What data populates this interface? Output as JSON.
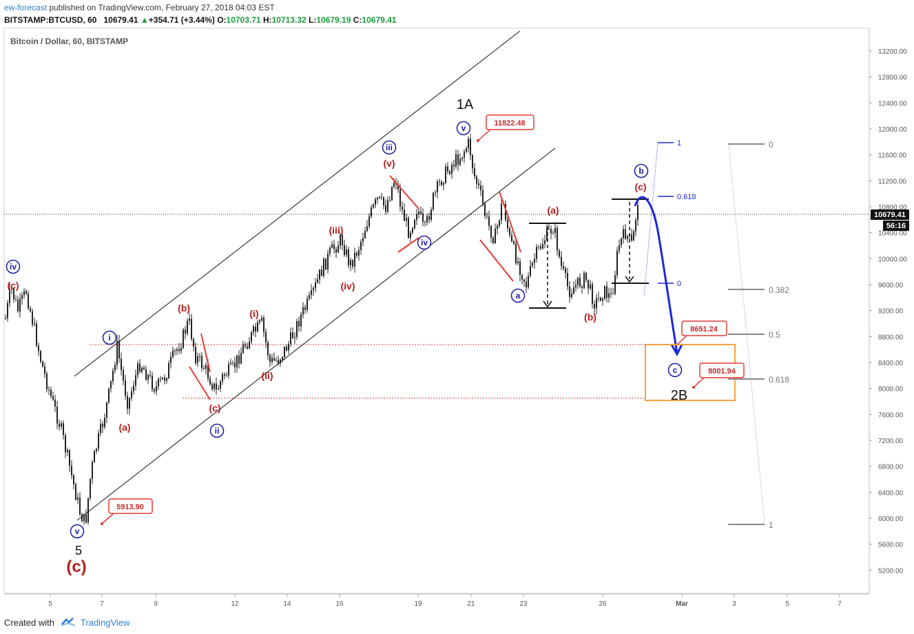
{
  "header": {
    "username": "ew-forecast",
    "published": "published on TradingView.com, February 27, 2018 04:03 EST",
    "symbol": "BITSTAMP:BTCUSD, 60",
    "last": "10679.41",
    "change_arrow": "▲",
    "change": "+354.71 (+3.44%)",
    "o_label": "O:",
    "o_value": "10703.71",
    "h_label": "H:",
    "h_value": "10713.32",
    "l_label": "L:",
    "l_value": "10679.19",
    "c_label": "C:",
    "c_value": "10679.41"
  },
  "footer": {
    "created_with": "Created with",
    "brand": "TradingView"
  },
  "colors": {
    "wave_red": "#b71c1c",
    "wave_blue": "#1a1aa6",
    "projection_blue": "#1b27d8",
    "target_box": "#f7a23a",
    "price_tag_red": "#e53935",
    "fib_gray": "#888888"
  },
  "chart_data": {
    "type": "candlestick",
    "title": "Bitcoin / Dollar, 60, BITSTAMP",
    "ylim": [
      4900,
      13550
    ],
    "x_tick_labels": [
      "5",
      "7",
      "9",
      "12",
      "14",
      "16",
      "19",
      "21",
      "23",
      "26",
      "Mar",
      "3",
      "5",
      "7"
    ],
    "y_tick_labels": [
      "13200.00",
      "12800.00",
      "12400.00",
      "12000.00",
      "11600.00",
      "11200.00",
      "10800.00",
      "10400.00",
      "10000.00",
      "9600.00",
      "9200.00",
      "8800.00",
      "8400.00",
      "8000.00",
      "7600.00",
      "7200.00",
      "6800.00",
      "6400.00",
      "6000.00",
      "5600.00",
      "5200.00"
    ],
    "current_price": {
      "value": 10679.41,
      "label": "10679.41",
      "countdown": "56:16"
    },
    "key_levels": [
      {
        "label": "11822.48",
        "value": 11822.48,
        "role": "1A high"
      },
      {
        "label": "5913.90",
        "value": 5913.9,
        "role": "wave 5 low"
      },
      {
        "label": "8651.24",
        "value": 8651.24,
        "role": "target zone top"
      },
      {
        "label": "8001.94",
        "value": 8001.94,
        "role": "target zone bottom"
      }
    ],
    "wave_labels": [
      {
        "text": "iv",
        "circled": true,
        "color": "blue"
      },
      {
        "text": "(c)",
        "color": "red"
      },
      {
        "text": "(b)",
        "color": "red"
      },
      {
        "text": "i",
        "circled": true,
        "color": "blue"
      },
      {
        "text": "(a)",
        "color": "red"
      },
      {
        "text": "v",
        "circled": true,
        "color": "blue"
      },
      {
        "text": "5",
        "color": "black"
      },
      {
        "text": "(c)",
        "color": "red",
        "emphasis": "large"
      },
      {
        "text": "(c)",
        "color": "red"
      },
      {
        "text": "ii",
        "circled": true,
        "color": "blue"
      },
      {
        "text": "(i)",
        "color": "red"
      },
      {
        "text": "(ii)",
        "color": "red"
      },
      {
        "text": "(iii)",
        "color": "red"
      },
      {
        "text": "(iv)",
        "color": "red"
      },
      {
        "text": "(v)",
        "color": "red"
      },
      {
        "text": "iii",
        "circled": true,
        "color": "blue"
      },
      {
        "text": "iv",
        "circled": true,
        "color": "blue"
      },
      {
        "text": "v",
        "circled": true,
        "color": "blue"
      },
      {
        "text": "1A",
        "color": "black"
      },
      {
        "text": "a",
        "circled": true,
        "color": "blue"
      },
      {
        "text": "(a)",
        "color": "red"
      },
      {
        "text": "(b)",
        "color": "red"
      },
      {
        "text": "(c)",
        "color": "red"
      },
      {
        "text": "b",
        "circled": true,
        "color": "blue"
      },
      {
        "text": "c",
        "circled": true,
        "color": "blue"
      },
      {
        "text": "2B",
        "color": "black"
      }
    ],
    "fib_extension": [
      {
        "label": "1",
        "value": 11780
      },
      {
        "label": "0.618",
        "value": 10930
      },
      {
        "label": "0",
        "value": 9590
      }
    ],
    "fib_retracement": [
      {
        "label": "0",
        "value": 11780
      },
      {
        "label": "0.382",
        "value": 9540
      },
      {
        "label": "0.5",
        "value": 8840
      },
      {
        "label": "0.618",
        "value": 8150
      },
      {
        "label": "1",
        "value": 5913.9
      }
    ],
    "path_points": [
      {
        "x": 0,
        "y": 9080
      },
      {
        "x": 8,
        "y": 9550
      },
      {
        "x": 18,
        "y": 9200
      },
      {
        "x": 30,
        "y": 9500
      },
      {
        "x": 40,
        "y": 9000
      },
      {
        "x": 52,
        "y": 8400
      },
      {
        "x": 65,
        "y": 7900
      },
      {
        "x": 80,
        "y": 7400
      },
      {
        "x": 95,
        "y": 6700
      },
      {
        "x": 108,
        "y": 6100
      },
      {
        "x": 116,
        "y": 5913.9
      },
      {
        "x": 124,
        "y": 6700
      },
      {
        "x": 132,
        "y": 7100
      },
      {
        "x": 142,
        "y": 7500
      },
      {
        "x": 152,
        "y": 8000
      },
      {
        "x": 162,
        "y": 8650
      },
      {
        "x": 170,
        "y": 8150
      },
      {
        "x": 178,
        "y": 7750
      },
      {
        "x": 186,
        "y": 8100
      },
      {
        "x": 196,
        "y": 8400
      },
      {
        "x": 206,
        "y": 8200
      },
      {
        "x": 218,
        "y": 8000
      },
      {
        "x": 230,
        "y": 8150
      },
      {
        "x": 244,
        "y": 8500
      },
      {
        "x": 256,
        "y": 8750
      },
      {
        "x": 266,
        "y": 9050
      },
      {
        "x": 276,
        "y": 8500
      },
      {
        "x": 290,
        "y": 8300
      },
      {
        "x": 306,
        "y": 7950
      },
      {
        "x": 316,
        "y": 8200
      },
      {
        "x": 330,
        "y": 8300
      },
      {
        "x": 346,
        "y": 8650
      },
      {
        "x": 360,
        "y": 8850
      },
      {
        "x": 372,
        "y": 9000
      },
      {
        "x": 384,
        "y": 8400
      },
      {
        "x": 396,
        "y": 8450
      },
      {
        "x": 412,
        "y": 8700
      },
      {
        "x": 428,
        "y": 9100
      },
      {
        "x": 444,
        "y": 9400
      },
      {
        "x": 458,
        "y": 9800
      },
      {
        "x": 472,
        "y": 10100
      },
      {
        "x": 488,
        "y": 10300
      },
      {
        "x": 500,
        "y": 9900
      },
      {
        "x": 512,
        "y": 10150
      },
      {
        "x": 526,
        "y": 10600
      },
      {
        "x": 540,
        "y": 10900
      },
      {
        "x": 552,
        "y": 10800
      },
      {
        "x": 566,
        "y": 11270
      },
      {
        "x": 574,
        "y": 10800
      },
      {
        "x": 586,
        "y": 10400
      },
      {
        "x": 598,
        "y": 10800
      },
      {
        "x": 608,
        "y": 10400
      },
      {
        "x": 620,
        "y": 10900
      },
      {
        "x": 634,
        "y": 11250
      },
      {
        "x": 648,
        "y": 11450
      },
      {
        "x": 662,
        "y": 11600
      },
      {
        "x": 673,
        "y": 11780
      },
      {
        "x": 680,
        "y": 11300
      },
      {
        "x": 688,
        "y": 11050
      },
      {
        "x": 698,
        "y": 10600
      },
      {
        "x": 710,
        "y": 10300
      },
      {
        "x": 722,
        "y": 10900
      },
      {
        "x": 732,
        "y": 10300
      },
      {
        "x": 744,
        "y": 9950
      },
      {
        "x": 756,
        "y": 9600
      },
      {
        "x": 768,
        "y": 10000
      },
      {
        "x": 782,
        "y": 10300
      },
      {
        "x": 796,
        "y": 10500
      },
      {
        "x": 806,
        "y": 9900
      },
      {
        "x": 818,
        "y": 9500
      },
      {
        "x": 830,
        "y": 9600
      },
      {
        "x": 842,
        "y": 9700
      },
      {
        "x": 856,
        "y": 9300
      },
      {
        "x": 868,
        "y": 9500
      },
      {
        "x": 880,
        "y": 9400
      },
      {
        "x": 890,
        "y": 10200
      },
      {
        "x": 900,
        "y": 10400
      },
      {
        "x": 910,
        "y": 10200
      },
      {
        "x": 918,
        "y": 10900
      }
    ]
  }
}
